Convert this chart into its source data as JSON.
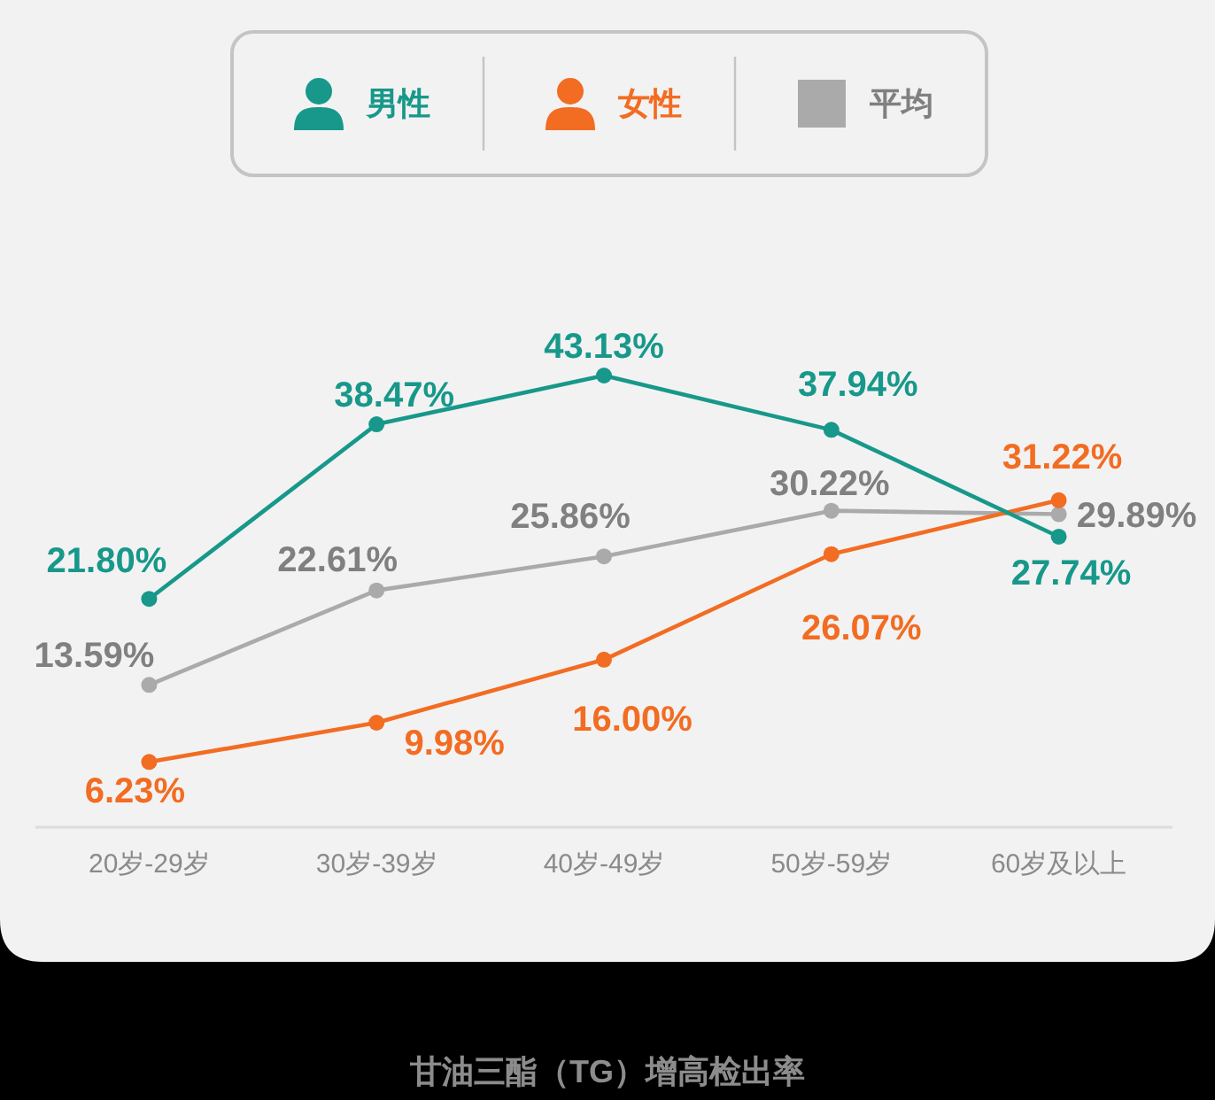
{
  "chart_data": {
    "type": "line",
    "title": "甘油三酯（TG）增高检出率",
    "categories": [
      "20岁-29岁",
      "30岁-39岁",
      "40岁-49岁",
      "50岁-59岁",
      "60岁及以上"
    ],
    "series": [
      {
        "name": "男性",
        "color": "#17988a",
        "values": [
          21.8,
          38.47,
          43.13,
          37.94,
          27.74
        ],
        "value_labels": [
          "21.80%",
          "38.47%",
          "43.13%",
          "37.94%",
          "27.74%"
        ]
      },
      {
        "name": "女性",
        "color": "#f26c22",
        "values": [
          6.23,
          9.98,
          16.0,
          26.07,
          31.22
        ],
        "value_labels": [
          "6.23%",
          "9.98%",
          "16.00%",
          "26.07%",
          "31.22%"
        ]
      },
      {
        "name": "平均",
        "color": "#aaaaaa",
        "values": [
          13.59,
          22.61,
          25.86,
          30.22,
          29.89
        ],
        "value_labels": [
          "13.59%",
          "22.61%",
          "25.86%",
          "30.22%",
          "29.89%"
        ]
      }
    ],
    "legend": "top",
    "marker": "circle"
  }
}
